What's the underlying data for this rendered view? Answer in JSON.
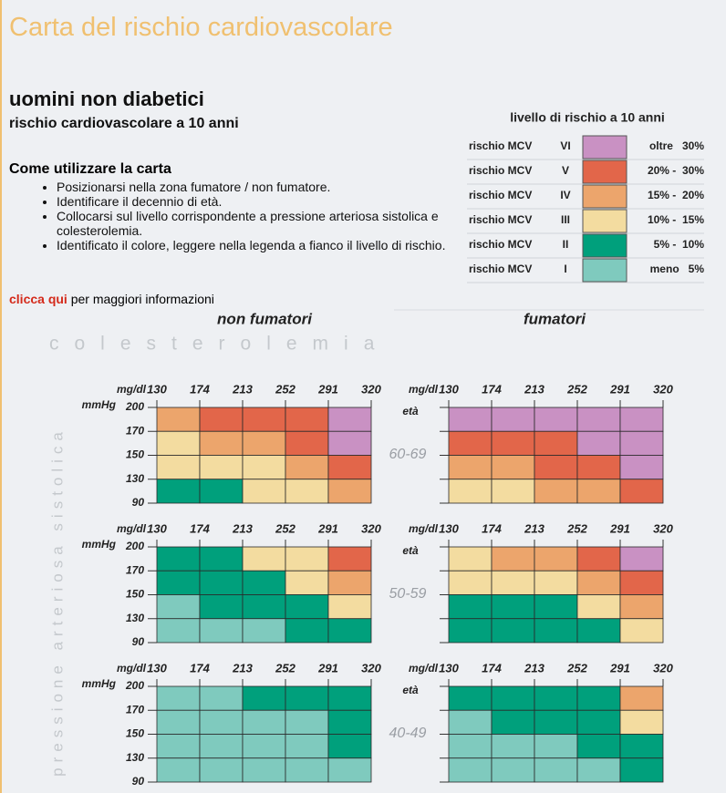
{
  "header": {
    "title": "Carta del rischio cardiovascolare",
    "subtitle": "uomini non diabetici",
    "subtitle2": "rischio cardiovascolare a 10 anni"
  },
  "instructions": {
    "title": "Come utilizzare la carta",
    "items": [
      "Posizionarsi nella zona fumatore / non fumatore.",
      "Identificare il decennio di età.",
      "Collocarsi sul livello corrispondente a pressione arteriosa sistolica e colesterolemia.",
      "Identificato il colore, leggere nella legenda a fianco il livello di rischio."
    ]
  },
  "link": {
    "text": "clicca qui",
    "rest": "per maggiori informazioni"
  },
  "legend": {
    "title": "livello di rischio a 10 anni",
    "levels": [
      {
        "label": "rischio MCV",
        "roman": "VI",
        "color": "#c991c3",
        "range": "oltre   30%"
      },
      {
        "label": "rischio MCV",
        "roman": "V",
        "color": "#e2664a",
        "range": "20% -  30%"
      },
      {
        "label": "rischio MCV",
        "roman": "IV",
        "color": "#eca56c",
        "range": "15% -  20%"
      },
      {
        "label": "rischio MCV",
        "roman": "III",
        "color": "#f3dca0",
        "range": "10% -  15%"
      },
      {
        "label": "rischio MCV",
        "roman": "II",
        "color": "#00a07c",
        "range": "5% -  10%"
      },
      {
        "label": "rischio MCV",
        "roman": "I",
        "color": "#7fcabe",
        "range": "meno   5%"
      }
    ]
  },
  "groups": {
    "non_smokers": "non fumatori",
    "smokers": "fumatori"
  },
  "axes": {
    "cholesterol_title": "colesterolemia",
    "pressure_title": "pressione arteriosa sistolica",
    "chol_unit": "mg/dl",
    "chol": [
      "130",
      "174",
      "213",
      "252",
      "291",
      "320"
    ],
    "bp_unit": "mmHg",
    "bp": [
      "200",
      "170",
      "150",
      "130",
      "90"
    ],
    "age_label": "età"
  },
  "panels": [
    {
      "age": "60-69",
      "non_smokers": [
        [
          "IV",
          "V",
          "V",
          "V",
          "VI"
        ],
        [
          "III",
          "IV",
          "IV",
          "V",
          "VI"
        ],
        [
          "III",
          "III",
          "III",
          "IV",
          "V"
        ],
        [
          "II",
          "II",
          "III",
          "III",
          "IV"
        ]
      ],
      "smokers": [
        [
          "VI",
          "VI",
          "VI",
          "VI",
          "VI"
        ],
        [
          "V",
          "V",
          "V",
          "VI",
          "VI"
        ],
        [
          "IV",
          "IV",
          "V",
          "V",
          "VI"
        ],
        [
          "III",
          "III",
          "IV",
          "IV",
          "V"
        ]
      ]
    },
    {
      "age": "50-59",
      "non_smokers": [
        [
          "II",
          "II",
          "III",
          "III",
          "V"
        ],
        [
          "II",
          "II",
          "II",
          "III",
          "IV"
        ],
        [
          "I",
          "II",
          "II",
          "II",
          "III"
        ],
        [
          "I",
          "I",
          "I",
          "II",
          "II"
        ]
      ],
      "smokers": [
        [
          "III",
          "IV",
          "IV",
          "V",
          "VI"
        ],
        [
          "III",
          "III",
          "III",
          "IV",
          "V"
        ],
        [
          "II",
          "II",
          "II",
          "III",
          "IV"
        ],
        [
          "II",
          "II",
          "II",
          "II",
          "III"
        ]
      ]
    },
    {
      "age": "40-49",
      "non_smokers": [
        [
          "I",
          "I",
          "II",
          "II",
          "II"
        ],
        [
          "I",
          "I",
          "I",
          "I",
          "II"
        ],
        [
          "I",
          "I",
          "I",
          "I",
          "II"
        ],
        [
          "I",
          "I",
          "I",
          "I",
          "I"
        ]
      ],
      "smokers": [
        [
          "II",
          "II",
          "II",
          "II",
          "IV"
        ],
        [
          "I",
          "II",
          "II",
          "II",
          "III"
        ],
        [
          "I",
          "I",
          "I",
          "II",
          "II"
        ],
        [
          "I",
          "I",
          "I",
          "I",
          "II"
        ]
      ]
    }
  ]
}
